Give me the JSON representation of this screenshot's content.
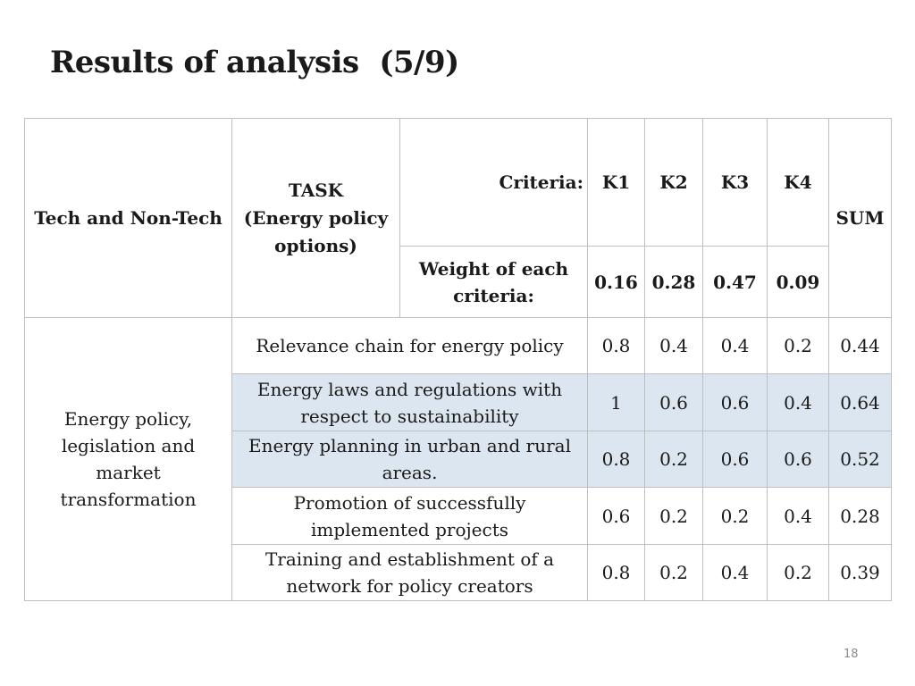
{
  "slide": {
    "title": "Results of analysis  (5/9)",
    "page_number": "18"
  },
  "table": {
    "header": {
      "col1": "Tech and Non-Tech",
      "col2": "TASK\n(Energy policy options)",
      "criteria_label": "Criteria:",
      "weight_label": "Weight of each criteria:",
      "criteria": [
        "K1",
        "K2",
        "K3",
        "K4"
      ],
      "weights": [
        "0.16",
        "0.28",
        "0.47",
        "0.09"
      ],
      "sum": "SUM"
    },
    "group_label": "Energy policy, legislation and market transformation",
    "rows": [
      {
        "task": "Relevance chain for energy policy",
        "k1": "0.8",
        "k2": "0.4",
        "k3": "0.4",
        "k4": "0.2",
        "sum": "0.44"
      },
      {
        "task": "Energy laws and regulations with respect to sustainability",
        "k1": "1",
        "k2": "0.6",
        "k3": "0.6",
        "k4": "0.4",
        "sum": "0.64"
      },
      {
        "task": "Energy planning in urban and rural areas.",
        "k1": "0.8",
        "k2": "0.2",
        "k3": "0.6",
        "k4": "0.6",
        "sum": "0.52"
      },
      {
        "task": "Promotion of successfully implemented projects",
        "k1": "0.6",
        "k2": "0.2",
        "k3": "0.2",
        "k4": "0.4",
        "sum": "0.28"
      },
      {
        "task": "Training and establishment of a network for policy creators",
        "k1": "0.8",
        "k2": "0.2",
        "k3": "0.4",
        "k4": "0.2",
        "sum": "0.39"
      }
    ]
  },
  "colors": {
    "shaded_row": "#dce6f0",
    "border": "#bfbfbf"
  }
}
